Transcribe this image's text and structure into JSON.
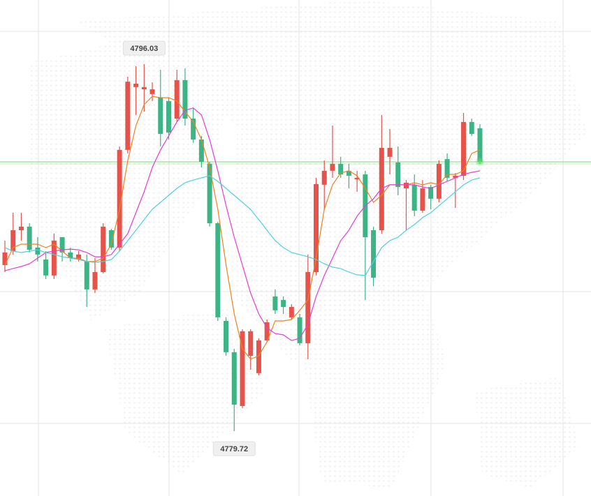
{
  "chart_data": {
    "type": "candlestick",
    "ylim": [
      4776.84,
      4798.88
    ],
    "up_color": "#e5534b",
    "down_color": "#3cb486",
    "open": [
      4787.1,
      4787.72,
      4788.65,
      4788.81,
      4787.88,
      4787.35,
      4786.64,
      4788.34,
      4787.66,
      4787.35,
      4787.26,
      4786.02,
      4786.79,
      4788.65,
      4787.88,
      4792.22,
      4795.01,
      4794.91,
      4794.7,
      4794.54,
      4794.39,
      4793.61,
      4795.32,
      4793.61,
      4792.68,
      4791.6,
      4788.96,
      4784.62,
      4783.23,
      4780.84,
      4783.07,
      4782.3,
      4783.75,
      4785.71,
      4785.55,
      4784.78,
      4784.78,
      4783.63,
      4786.79,
      4790.67,
      4791.29,
      4791.6,
      4791.29,
      4790.91,
      4791.13,
      4788.65,
      4788.65,
      4791.91,
      4791.66,
      4790.51,
      4790.67,
      4789.52,
      4790.57,
      4790.05,
      4791.81,
      4790.98,
      4791.07,
      4793.46,
      4793.18
    ],
    "high": [
      4788.19,
      4789.43,
      4789.43,
      4788.96,
      4788.34,
      4787.72,
      4788.5,
      4788.34,
      4787.88,
      4787.72,
      4787.57,
      4787.41,
      4788.96,
      4788.71,
      4792.37,
      4795.47,
      4795.94,
      4796.03,
      4795.22,
      4795.78,
      4794.54,
      4795.78,
      4795.84,
      4794.08,
      4792.84,
      4791.69,
      4789.02,
      4784.78,
      4783.38,
      4784.25,
      4784.25,
      4783.85,
      4784.68,
      4786.02,
      4785.71,
      4785.36,
      4784.93,
      4787.57,
      4790.98,
      4791.75,
      4793.3,
      4791.91,
      4791.6,
      4791.29,
      4791.29,
      4788.81,
      4793.77,
      4793.15,
      4792.37,
      4790.88,
      4791.13,
      4790.88,
      4790.67,
      4791.75,
      4792.06,
      4791.19,
      4793.86,
      4793.61,
      4793.36
    ],
    "low": [
      4786.79,
      4787.57,
      4788.19,
      4787.66,
      4787.26,
      4786.48,
      4786.48,
      4787.26,
      4787.26,
      4787.26,
      4785.24,
      4785.86,
      4786.73,
      4787.78,
      4787.72,
      4792.06,
      4793.77,
      4793.92,
      4794.39,
      4792.37,
      4792.68,
      4793.46,
      4793.3,
      4792.53,
      4791.44,
      4788.81,
      4784.62,
      4783.07,
      4779.72,
      4780.75,
      4782.45,
      4782.2,
      4783.69,
      4784.93,
      4784.93,
      4784.68,
      4783.54,
      4782.92,
      4786.64,
      4789.58,
      4790.98,
      4790.98,
      4790.51,
      4790.36,
      4785.55,
      4786.17,
      4788.5,
      4791.13,
      4790.2,
      4788.65,
      4789.27,
      4789.43,
      4789.58,
      4789.89,
      4790.82,
      4789.64,
      4790.88,
      4792.84,
      4791.6
    ],
    "close": [
      4787.66,
      4788.65,
      4788.81,
      4787.78,
      4787.57,
      4786.64,
      4788.19,
      4787.66,
      4787.41,
      4787.57,
      4786.02,
      4786.79,
      4788.81,
      4787.88,
      4792.22,
      4795.25,
      4795.16,
      4795.01,
      4794.91,
      4792.93,
      4792.99,
      4795.32,
      4793.61,
      4792.68,
      4791.69,
      4788.96,
      4784.78,
      4783.23,
      4780.9,
      4784.16,
      4784.16,
      4783.75,
      4784.56,
      4785.09,
      4785.24,
      4785.24,
      4783.63,
      4786.79,
      4790.7,
      4791.29,
      4791.6,
      4791.13,
      4791.07,
      4790.98,
      4788.34,
      4786.54,
      4792.31,
      4792.31,
      4790.57,
      4790.76,
      4789.52,
      4790.51,
      4790.05,
      4791.6,
      4790.98,
      4791.07,
      4793.46,
      4792.93,
      4791.69
    ],
    "lines": [
      {
        "color": "#f0821e",
        "values": [
          4787.1,
          4787.88,
          4788.03,
          4788.03,
          4788.03,
          4787.88,
          4788.03,
          4787.72,
          4787.41,
          4787.41,
          4787.26,
          4787.26,
          4787.41,
          4788.03,
          4789.58,
          4791.75,
          4793.3,
          4794.23,
          4794.6,
          4794.54,
          4794.54,
          4794.39,
          4793.92,
          4793.46,
          4792.68,
          4791.44,
          4789.58,
          4787.1,
          4784.93,
          4783.38,
          4782.92,
          4783.07,
          4783.69,
          4784.62,
          4784.62,
          4784.68,
          4785.09,
          4785.55,
          4787.41,
          4789.58,
          4790.67,
          4791.19,
          4791.29,
          4791.07,
          4790.51,
          4789.89,
          4790.2,
          4790.67,
          4790.67,
          4790.67,
          4790.76,
          4790.67,
          4790.76,
          4790.67,
          4791.13,
          4791.13,
          4791.29,
          4792.06,
          4792.22
        ]
      },
      {
        "color": "#e83ad8",
        "values": [
          4786.85,
          4786.95,
          4787.04,
          4787.16,
          4787.41,
          4787.66,
          4787.72,
          4787.78,
          4787.81,
          4787.78,
          4787.66,
          4787.47,
          4787.47,
          4787.57,
          4788.03,
          4788.5,
          4789.43,
          4790.36,
          4791.44,
          4792.22,
          4792.84,
          4793.46,
          4793.98,
          4794.08,
          4793.77,
          4792.68,
          4791.29,
          4789.74,
          4788.34,
          4787.1,
          4785.86,
          4784.93,
          4784.31,
          4784.06,
          4784.0,
          4783.75,
          4783.85,
          4784.47,
          4785.71,
          4786.64,
          4787.41,
          4788.19,
          4788.65,
          4789.27,
          4789.74,
          4790.05,
          4790.51,
          4790.67,
          4790.67,
          4790.67,
          4790.67,
          4790.57,
          4790.51,
          4790.67,
          4790.82,
          4790.98,
          4791.13,
          4791.22,
          4791.29
        ]
      },
      {
        "color": "#4dd0e1",
        "values": [
          4787.88,
          4787.72,
          4787.66,
          4787.72,
          4787.78,
          4787.66,
          4787.57,
          4787.47,
          4787.41,
          4787.35,
          4787.26,
          4787.22,
          4787.26,
          4787.35,
          4787.72,
          4788.19,
          4788.65,
          4789.12,
          4789.58,
          4789.89,
          4790.2,
          4790.51,
          4790.76,
          4790.88,
          4790.98,
          4791.07,
          4790.82,
          4790.51,
          4790.2,
          4789.89,
          4789.58,
          4789.12,
          4788.65,
          4788.19,
          4787.88,
          4787.66,
          4787.57,
          4787.47,
          4787.35,
          4787.16,
          4787.01,
          4786.95,
          4786.79,
          4786.67,
          4786.64,
          4787.26,
          4787.88,
          4788.19,
          4788.34,
          4788.65,
          4788.9,
          4789.21,
          4789.43,
          4789.74,
          4790.05,
          4790.36,
          4790.67,
          4790.88,
          4790.98
        ]
      }
    ],
    "high_label": 4796.03,
    "low_label": 4779.72,
    "price_line_color": "#7ed67e"
  }
}
